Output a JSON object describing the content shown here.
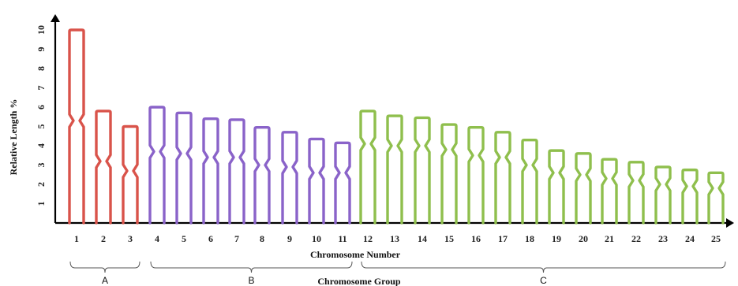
{
  "chart_data": {
    "type": "ideogram",
    "ylabel": "Relative  Length  %",
    "xlabel": "Chromosome    Number",
    "group_axis_label": "Chromosome     Group",
    "ylim": [
      0,
      10.7
    ],
    "yticks": [
      1,
      2,
      3,
      4,
      5,
      6,
      7,
      8,
      9,
      10
    ],
    "categories": [
      "1",
      "2",
      "3",
      "4",
      "5",
      "6",
      "7",
      "8",
      "9",
      "10",
      "11",
      "12",
      "13",
      "14",
      "15",
      "16",
      "17",
      "18",
      "19",
      "20",
      "21",
      "22",
      "23",
      "24",
      "25"
    ],
    "total_length": [
      10.0,
      5.8,
      5.0,
      6.0,
      5.7,
      5.4,
      5.35,
      4.95,
      4.7,
      4.35,
      4.15,
      5.8,
      5.55,
      5.45,
      5.1,
      4.95,
      4.7,
      4.3,
      3.75,
      3.6,
      3.3,
      3.15,
      2.9,
      2.75,
      2.6
    ],
    "centromere_position": [
      5.3,
      3.2,
      2.7,
      3.7,
      3.6,
      3.4,
      3.4,
      3.0,
      2.9,
      2.6,
      2.6,
      4.1,
      4.0,
      4.0,
      3.8,
      3.5,
      3.4,
      3.0,
      2.6,
      2.5,
      2.3,
      2.2,
      2.0,
      1.9,
      1.8
    ],
    "groups": [
      {
        "name": "A",
        "members": [
          "1",
          "2",
          "3"
        ],
        "color": "#d9534a"
      },
      {
        "name": "B",
        "members": [
          "4",
          "5",
          "6",
          "7",
          "8",
          "9",
          "10",
          "11"
        ],
        "color": "#8a63c9"
      },
      {
        "name": "C",
        "members": [
          "12",
          "13",
          "14",
          "15",
          "16",
          "17",
          "18",
          "19",
          "20",
          "21",
          "22",
          "23",
          "24",
          "25"
        ],
        "color": "#8fbf4d"
      }
    ],
    "grid": false,
    "legend": "none"
  }
}
